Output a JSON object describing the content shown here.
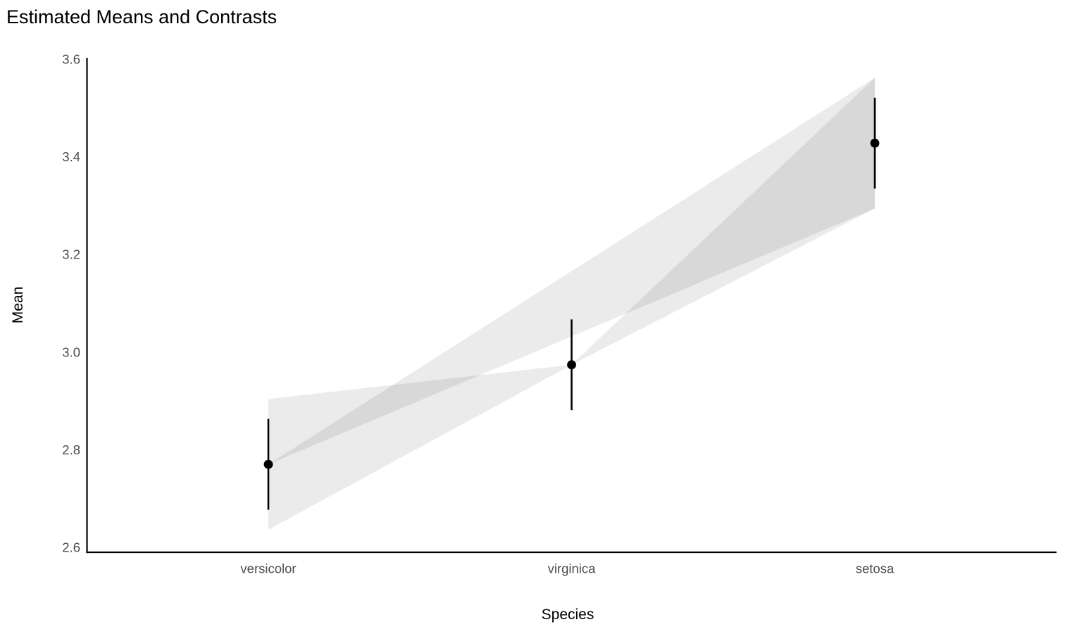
{
  "chart": {
    "title": "Estimated Means and Contrasts",
    "xlabel": "Species",
    "ylabel": "Mean"
  },
  "chart_data": {
    "type": "scatter",
    "subtype": "point-estimates-with-ci-and-contrast-polygons",
    "title": "Estimated Means and Contrasts",
    "xlabel": "Species",
    "ylabel": "Mean",
    "categories": [
      "versicolor",
      "virginica",
      "setosa"
    ],
    "ylim": [
      2.6,
      3.6
    ],
    "yticks": [
      3.6,
      3.4,
      3.2,
      3.0,
      2.8,
      2.6
    ],
    "ytick_labels": [
      "3.6",
      "3.4",
      "3.2",
      "3.0",
      "2.8",
      "2.6"
    ],
    "grid": false,
    "legend": false,
    "points": [
      {
        "category": "versicolor",
        "mean": 2.77,
        "ci_low": 2.677,
        "ci_high": 2.863
      },
      {
        "category": "virginica",
        "mean": 2.974,
        "ci_low": 2.881,
        "ci_high": 3.067
      },
      {
        "category": "setosa",
        "mean": 3.428,
        "ci_low": 3.335,
        "ci_high": 3.521
      }
    ],
    "contrast_polygons": [
      {
        "pair": [
          "versicolor",
          "virginica"
        ],
        "wide_group": "versicolor",
        "wide_low": 2.636,
        "wide_high": 2.904,
        "apex_group": "virginica",
        "apex_value": 2.974
      },
      {
        "pair": [
          "versicolor",
          "setosa"
        ],
        "wide_group": "setosa",
        "wide_low": 3.294,
        "wide_high": 3.562,
        "apex_group": "versicolor",
        "apex_value": 2.77
      },
      {
        "pair": [
          "virginica",
          "setosa"
        ],
        "wide_group": "setosa",
        "wide_low": 3.294,
        "wide_high": 3.562,
        "apex_group": "virginica",
        "apex_value": 2.974
      }
    ],
    "colors": {
      "point": "#000000",
      "error_bar": "#000000",
      "polygon_fill": "#000000",
      "polygon_opacity": 0.08,
      "axis_line": "#000000",
      "tick_label": "#4d4d4d",
      "axis_title": "#000000",
      "title": "#000000",
      "background": "#ffffff"
    }
  }
}
